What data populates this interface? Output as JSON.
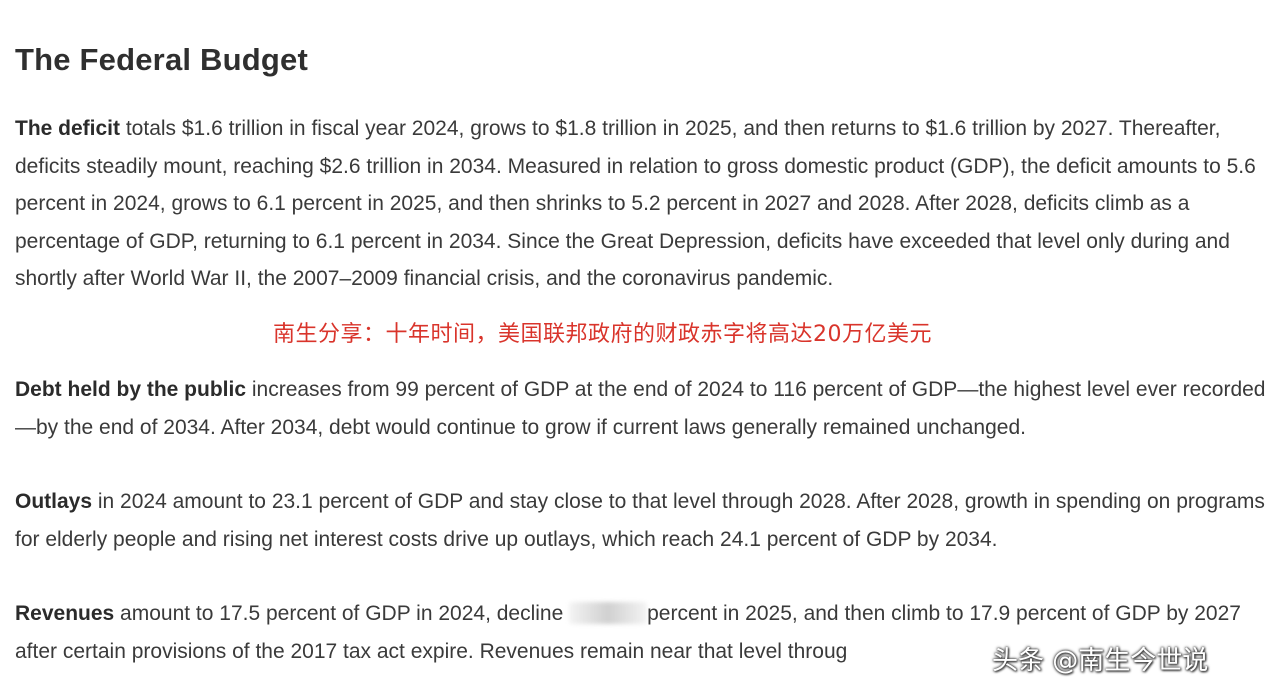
{
  "title": "The Federal Budget",
  "paragraphs": {
    "deficit": {
      "lead": "The deficit",
      "text": " totals $1.6 trillion in fiscal year 2024, grows to $1.8 trillion in 2025, and then returns to $1.6 trillion by 2027. Thereafter, deficits steadily mount, reaching $2.6 trillion in 2034. Measured in relation to gross domestic product (GDP), the deficit amounts to 5.6 percent in 2024, grows to 6.1 percent in 2025, and then shrinks to 5.2 percent in 2027 and 2028. After 2028, deficits climb as a percentage of GDP, returning to 6.1 percent in 2034. Since the Great Depression, deficits have exceeded that level only during and shortly after World War II, the 2007–2009 financial crisis, and the coronavirus pandemic."
    },
    "debt": {
      "lead": "Debt held by the public",
      "text": " increases from 99 percent of GDP at the end of 2024 to 116 percent of GDP—the highest level ever recorded—by the end of 2034. After 2034, debt would continue to grow if current laws generally remained unchanged."
    },
    "outlays": {
      "lead": "Outlays",
      "text": " in 2024 amount to 23.1 percent of GDP and stay close to that level through 2028. After 2028, growth in spending on programs for elderly people and rising net interest costs drive up outlays, which reach 24.1 percent of GDP by 2034."
    },
    "revenues": {
      "lead": "Revenues",
      "text_before": " amount to 17.5 percent of GDP in 2024, decline ",
      "text_after": "percent in 2025, and then climb to 17.9 percent of GDP by 2027 after certain provisions of the 2017 tax act expire. Revenues remain near that level throug"
    }
  },
  "overlay_caption": "南生分享：十年时间，美国联邦政府的财政赤字将高达20万亿美元",
  "watermark": "头条 @南生今世说",
  "colors": {
    "overlay_caption": "#d9342b",
    "body_text": "#3a3a3a"
  }
}
